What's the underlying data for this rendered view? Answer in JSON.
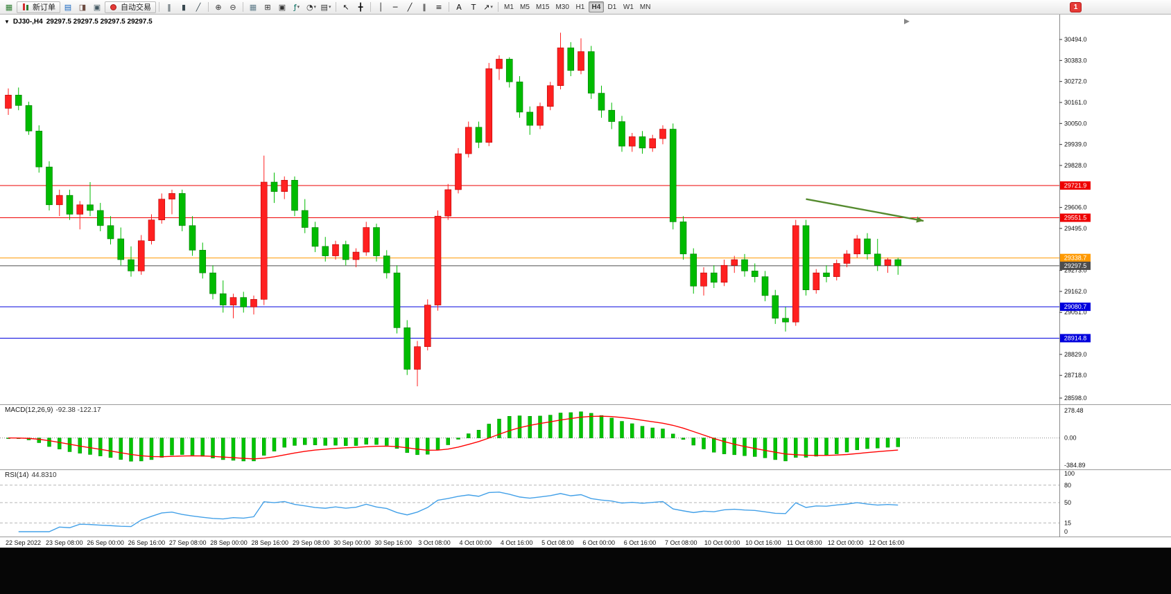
{
  "toolbar": {
    "items": [
      {
        "type": "icon",
        "name": "new-chart-icon",
        "glyph": "▦",
        "color": "#2e7d32"
      },
      {
        "type": "button",
        "name": "new-order-button",
        "label": "新订单",
        "icon": "order-candles-icon"
      },
      {
        "type": "icon",
        "name": "market-watch-icon",
        "glyph": "▤",
        "color": "#1565c0"
      },
      {
        "type": "icon",
        "name": "navigator-icon",
        "glyph": "◨",
        "color": "#6d4c41"
      },
      {
        "type": "icon",
        "name": "terminal-icon",
        "glyph": "▣",
        "color": "#455a64"
      },
      {
        "type": "button",
        "name": "auto-trading-button",
        "label": "自动交易",
        "icon": "auto-trading-dot-icon"
      },
      {
        "type": "sep"
      },
      {
        "type": "icon",
        "name": "bar-chart-icon",
        "glyph": "‖",
        "color": "#37474f"
      },
      {
        "type": "icon",
        "name": "candlestick-chart-icon",
        "glyph": "▮",
        "color": "#37474f"
      },
      {
        "type": "icon",
        "name": "line-chart-icon",
        "glyph": "╱",
        "color": "#37474f"
      },
      {
        "type": "sep"
      },
      {
        "type": "icon",
        "name": "zoom-in-icon",
        "glyph": "⊕",
        "color": "#333"
      },
      {
        "type": "icon",
        "name": "zoom-out-icon",
        "glyph": "⊖",
        "color": "#333"
      },
      {
        "type": "sep"
      },
      {
        "type": "icon",
        "name": "grid-icon",
        "glyph": "▦",
        "color": "#607d8b"
      },
      {
        "type": "icon",
        "name": "tile-windows-icon",
        "glyph": "⊞",
        "color": "#333"
      },
      {
        "type": "icon",
        "name": "cascade-windows-icon",
        "glyph": "▣",
        "color": "#333"
      },
      {
        "type": "icon",
        "name": "indicators-icon",
        "glyph": "ƒ",
        "color": "#00695c",
        "caret": true
      },
      {
        "type": "icon",
        "name": "periods-icon",
        "glyph": "◔",
        "color": "#333",
        "caret": true
      },
      {
        "type": "icon",
        "name": "templates-icon",
        "glyph": "▤",
        "color": "#333",
        "caret": true
      },
      {
        "type": "sep"
      },
      {
        "type": "icon",
        "name": "cursor-icon",
        "glyph": "↖",
        "color": "#111"
      },
      {
        "type": "icon",
        "name": "crosshair-icon",
        "glyph": "╋",
        "color": "#111"
      },
      {
        "type": "sep"
      },
      {
        "type": "icon",
        "name": "vertical-line-icon",
        "glyph": "│",
        "color": "#111"
      },
      {
        "type": "icon",
        "name": "horizontal-line-icon",
        "glyph": "─",
        "color": "#111"
      },
      {
        "type": "icon",
        "name": "trendline-icon",
        "glyph": "╱",
        "color": "#111"
      },
      {
        "type": "icon",
        "name": "equidistant-channel-icon",
        "glyph": "∥",
        "color": "#111"
      },
      {
        "type": "icon",
        "name": "fibonacci-icon",
        "glyph": "≡",
        "color": "#111"
      },
      {
        "type": "sep"
      },
      {
        "type": "icon",
        "name": "text-icon",
        "glyph": "A",
        "color": "#111"
      },
      {
        "type": "icon",
        "name": "text-label-icon",
        "glyph": "T",
        "color": "#111"
      },
      {
        "type": "icon",
        "name": "arrows-icon",
        "glyph": "↗",
        "color": "#111",
        "caret": true
      },
      {
        "type": "sep"
      },
      {
        "type": "tf",
        "name": "timeframe-m1-button",
        "label": "M1"
      },
      {
        "type": "tf",
        "name": "timeframe-m5-button",
        "label": "M5"
      },
      {
        "type": "tf",
        "name": "timeframe-m15-button",
        "label": "M15"
      },
      {
        "type": "tf",
        "name": "timeframe-m30-button",
        "label": "M30"
      },
      {
        "type": "tf",
        "name": "timeframe-h1-button",
        "label": "H1"
      },
      {
        "type": "tf",
        "name": "timeframe-h4-button",
        "label": "H4",
        "active": true
      },
      {
        "type": "tf",
        "name": "timeframe-d1-button",
        "label": "D1"
      },
      {
        "type": "tf",
        "name": "timeframe-w1-button",
        "label": "W1"
      },
      {
        "type": "tf",
        "name": "timeframe-mn-button",
        "label": "MN"
      },
      {
        "type": "spacer"
      },
      {
        "type": "alert",
        "name": "notifications-icon",
        "badge": "1"
      }
    ]
  },
  "chart_header": {
    "symbol": "DJ30-,H4",
    "ohlc": "29297.5 29297.5 29297.5 29297.5"
  },
  "indicators": {
    "macd": {
      "label": "MACD(12,26,9)",
      "values": "-92.38 -122.17",
      "fast": 12,
      "slow": 26,
      "signal": 9,
      "axis_labels": [
        "278.48",
        "0.00",
        "-384.89"
      ]
    },
    "rsi": {
      "label": "RSI(14)",
      "value": "44.8310",
      "period": 14,
      "levels": [
        80,
        50,
        15
      ],
      "axis_labels": [
        "100",
        "80",
        "50",
        "15",
        "0"
      ]
    }
  },
  "chart_data": {
    "type": "candlestick",
    "symbol": "DJ30-",
    "timeframe": "H4",
    "colors": {
      "up": "#ff2020",
      "down": "#00bb00",
      "up_border": "#b30000",
      "down_border": "#007700"
    },
    "price_axis": {
      "min": 28598,
      "max": 30560,
      "ticks": [
        30494.0,
        30383.0,
        30272.0,
        30161.0,
        30050.0,
        29939.0,
        29828.0,
        29606.0,
        29495.0,
        29273.0,
        29162.0,
        29051.0,
        28829.0,
        28718.0,
        28598.0
      ]
    },
    "horizontal_lines": [
      {
        "name": "resistance-line-1",
        "price": 29721.9,
        "color": "#ee0000"
      },
      {
        "name": "resistance-line-2",
        "price": 29551.5,
        "color": "#ee0000"
      },
      {
        "name": "pivot-line",
        "price": 29338.7,
        "color": "#ff9900"
      },
      {
        "name": "current-price-line",
        "price": 29297.5,
        "color": "#4d4d4d"
      },
      {
        "name": "support-line-1",
        "price": 29080.7,
        "color": "#0000dd"
      },
      {
        "name": "support-line-2",
        "price": 28914.8,
        "color": "#0000dd"
      }
    ],
    "trend_arrow": {
      "from": {
        "index": 78,
        "price": 29650
      },
      "to": {
        "index": 89.5,
        "price": 29535
      },
      "color": "#558b2f"
    },
    "time_labels": [
      "22 Sep 2022",
      "23 Sep 08:00",
      "26 Sep 00:00",
      "26 Sep 16:00",
      "27 Sep 08:00",
      "28 Sep 00:00",
      "28 Sep 16:00",
      "29 Sep 08:00",
      "30 Sep 00:00",
      "30 Sep 16:00",
      "3 Oct 08:00",
      "4 Oct 00:00",
      "4 Oct 16:00",
      "5 Oct 08:00",
      "6 Oct 00:00",
      "6 Oct 16:00",
      "7 Oct 08:00",
      "10 Oct 00:00",
      "10 Oct 16:00",
      "11 Oct 08:00",
      "12 Oct 00:00",
      "12 Oct 16:00"
    ],
    "candles": [
      [
        30130,
        30235,
        30095,
        30200
      ],
      [
        30200,
        30240,
        30120,
        30145
      ],
      [
        30145,
        30165,
        29990,
        30010
      ],
      [
        30010,
        30040,
        29790,
        29820
      ],
      [
        29820,
        29850,
        29590,
        29620
      ],
      [
        29620,
        29700,
        29560,
        29670
      ],
      [
        29670,
        29700,
        29540,
        29570
      ],
      [
        29570,
        29640,
        29490,
        29620
      ],
      [
        29620,
        29740,
        29560,
        29590
      ],
      [
        29590,
        29630,
        29480,
        29510
      ],
      [
        29510,
        29560,
        29410,
        29440
      ],
      [
        29440,
        29500,
        29300,
        29330
      ],
      [
        29330,
        29400,
        29240,
        29270
      ],
      [
        29270,
        29460,
        29250,
        29430
      ],
      [
        29430,
        29570,
        29410,
        29540
      ],
      [
        29540,
        29680,
        29520,
        29650
      ],
      [
        29650,
        29700,
        29570,
        29680
      ],
      [
        29680,
        29700,
        29480,
        29510
      ],
      [
        29510,
        29560,
        29350,
        29380
      ],
      [
        29380,
        29420,
        29230,
        29260
      ],
      [
        29260,
        29300,
        29120,
        29150
      ],
      [
        29150,
        29220,
        29050,
        29090
      ],
      [
        29090,
        29150,
        29020,
        29130
      ],
      [
        29130,
        29160,
        29050,
        29080
      ],
      [
        29080,
        29140,
        29040,
        29120
      ],
      [
        29120,
        29880,
        29090,
        29740
      ],
      [
        29740,
        29790,
        29630,
        29690
      ],
      [
        29690,
        29770,
        29650,
        29750
      ],
      [
        29750,
        29770,
        29560,
        29590
      ],
      [
        29590,
        29650,
        29470,
        29500
      ],
      [
        29500,
        29530,
        29370,
        29400
      ],
      [
        29400,
        29450,
        29320,
        29350
      ],
      [
        29350,
        29430,
        29330,
        29410
      ],
      [
        29410,
        29430,
        29300,
        29330
      ],
      [
        29330,
        29390,
        29290,
        29370
      ],
      [
        29370,
        29530,
        29350,
        29500
      ],
      [
        29500,
        29520,
        29320,
        29350
      ],
      [
        29350,
        29380,
        29230,
        29260
      ],
      [
        29260,
        29300,
        28940,
        28970
      ],
      [
        28970,
        29010,
        28720,
        28750
      ],
      [
        28750,
        28900,
        28660,
        28870
      ],
      [
        28870,
        29120,
        28850,
        29090
      ],
      [
        29090,
        29590,
        29060,
        29560
      ],
      [
        29560,
        29730,
        29540,
        29700
      ],
      [
        29700,
        29920,
        29680,
        29890
      ],
      [
        29890,
        30060,
        29870,
        30030
      ],
      [
        30030,
        30060,
        29920,
        29950
      ],
      [
        29950,
        30370,
        29930,
        30340
      ],
      [
        30340,
        30410,
        30280,
        30390
      ],
      [
        30390,
        30400,
        30240,
        30270
      ],
      [
        30270,
        30300,
        30080,
        30110
      ],
      [
        30110,
        30140,
        29990,
        30040
      ],
      [
        30040,
        30160,
        30020,
        30140
      ],
      [
        30140,
        30270,
        30120,
        30250
      ],
      [
        30250,
        30530,
        30230,
        30450
      ],
      [
        30450,
        30480,
        30300,
        30330
      ],
      [
        30330,
        30500,
        30310,
        30430
      ],
      [
        30430,
        30460,
        30180,
        30210
      ],
      [
        30210,
        30250,
        30080,
        30120
      ],
      [
        30120,
        30160,
        30020,
        30060
      ],
      [
        30060,
        30090,
        29900,
        29930
      ],
      [
        29930,
        30000,
        29900,
        29980
      ],
      [
        29980,
        30010,
        29890,
        29920
      ],
      [
        29920,
        29990,
        29900,
        29970
      ],
      [
        29970,
        30040,
        29940,
        30020
      ],
      [
        30020,
        30050,
        29490,
        29530
      ],
      [
        29530,
        29560,
        29330,
        29360
      ],
      [
        29360,
        29390,
        29150,
        29190
      ],
      [
        29190,
        29290,
        29140,
        29260
      ],
      [
        29260,
        29300,
        29180,
        29210
      ],
      [
        29210,
        29330,
        29190,
        29300
      ],
      [
        29300,
        29350,
        29260,
        29330
      ],
      [
        29330,
        29360,
        29240,
        29270
      ],
      [
        29270,
        29310,
        29210,
        29240
      ],
      [
        29240,
        29270,
        29110,
        29140
      ],
      [
        29140,
        29170,
        28990,
        29020
      ],
      [
        29020,
        29080,
        28950,
        29000
      ],
      [
        29000,
        29540,
        28980,
        29510
      ],
      [
        29510,
        29540,
        29140,
        29170
      ],
      [
        29170,
        29280,
        29150,
        29260
      ],
      [
        29260,
        29300,
        29210,
        29240
      ],
      [
        29240,
        29330,
        29220,
        29310
      ],
      [
        29310,
        29380,
        29290,
        29360
      ],
      [
        29360,
        29460,
        29340,
        29440
      ],
      [
        29440,
        29470,
        29330,
        29360
      ],
      [
        29360,
        29440,
        29270,
        29300
      ],
      [
        29300,
        29340,
        29260,
        29330
      ],
      [
        29330,
        29340,
        29250,
        29297.5
      ]
    ]
  }
}
